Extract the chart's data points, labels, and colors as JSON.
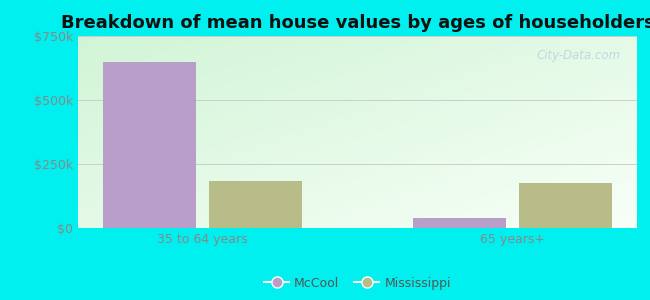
{
  "title": "Breakdown of mean house values by ages of householders",
  "categories": [
    "35 to 64 years",
    "65 years+"
  ],
  "mccool_values": [
    650000,
    40000
  ],
  "mississippi_values": [
    185000,
    175000
  ],
  "mccool_color": "#b89ec8",
  "mississippi_color": "#b8bc88",
  "ylim": [
    0,
    750000
  ],
  "yticks": [
    0,
    250000,
    500000,
    750000
  ],
  "ytick_labels": [
    "$0",
    "$250k",
    "$500k",
    "$750k"
  ],
  "bar_width": 0.3,
  "outer_bg": "#00f0f0",
  "legend_mccool": "McCool",
  "legend_mississippi": "Mississippi",
  "watermark": "City-Data.com",
  "title_fontsize": 13,
  "tick_color": "#888888",
  "grid_color": "#cccccc"
}
